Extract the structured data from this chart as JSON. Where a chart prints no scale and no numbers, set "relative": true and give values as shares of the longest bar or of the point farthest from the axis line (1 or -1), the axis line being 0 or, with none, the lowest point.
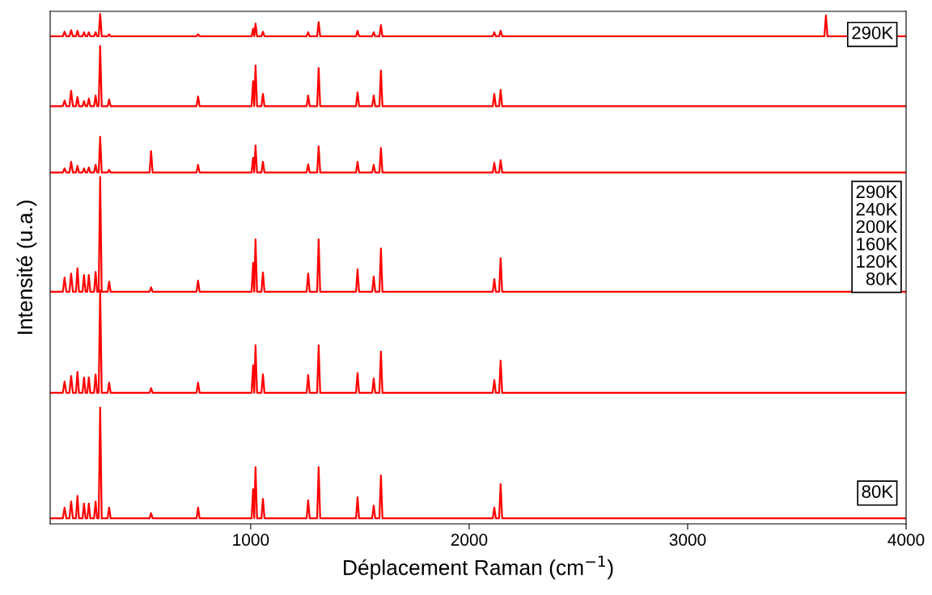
{
  "chart_data": {
    "type": "line",
    "relative": true,
    "xlabel": "Déplacement Raman (cm$^{−1}$)",
    "ylabel": "Intensité (u.a.)",
    "x": [
      82,
      140,
      148,
      156,
      170,
      178,
      186,
      200,
      207,
      214,
      230,
      237,
      244,
      252,
      259,
      266,
      283,
      290,
      297,
      304,
      311,
      318,
      345,
      352,
      359,
      537,
      544,
      551,
      752,
      759,
      766,
      1004,
      1011,
      1016,
      1022,
      1029,
      1049,
      1056,
      1063,
      1256,
      1263,
      1270,
      1304,
      1311,
      1318,
      1482,
      1489,
      1496,
      1556,
      1563,
      1570,
      1589,
      1596,
      1603,
      2108,
      2115,
      2122,
      2137,
      2144,
      2151,
      3626,
      3633,
      3640,
      4000
    ],
    "xlim": [
      82,
      4000
    ],
    "xticks": [
      1000,
      2000,
      3000,
      4000
    ],
    "grid": false,
    "legend": false,
    "marker": "none",
    "line_style": "solid",
    "series": [
      {
        "color": "#ff0000",
        "values": [
          0.956,
          0.956,
          0.965,
          0.956,
          0.956,
          0.968,
          0.956,
          0.956,
          0.967,
          0.956,
          0.956,
          0.964,
          0.956,
          0.956,
          0.964,
          0.956,
          0.956,
          0.964,
          0.956,
          0.956,
          1.0,
          0.956,
          0.956,
          0.96,
          0.956,
          0.956,
          0.956,
          0.956,
          0.956,
          0.96,
          0.956,
          0.956,
          0.971,
          0.956,
          0.981,
          0.956,
          0.956,
          0.965,
          0.956,
          0.956,
          0.964,
          0.956,
          0.956,
          0.984,
          0.956,
          0.956,
          0.967,
          0.956,
          0.956,
          0.964,
          0.956,
          0.956,
          0.978,
          0.956,
          0.956,
          0.964,
          0.956,
          0.956,
          0.967,
          0.956,
          0.956,
          0.997,
          0.956,
          0.956
        ]
      },
      {
        "color": "#ff0000",
        "values": [
          0.819,
          0.819,
          0.83,
          0.819,
          0.819,
          0.849,
          0.819,
          0.819,
          0.837,
          0.819,
          0.819,
          0.829,
          0.819,
          0.819,
          0.834,
          0.819,
          0.819,
          0.84,
          0.819,
          0.819,
          0.937,
          0.819,
          0.819,
          0.832,
          0.819,
          0.819,
          0.819,
          0.819,
          0.819,
          0.838,
          0.819,
          0.819,
          0.868,
          0.819,
          0.899,
          0.819,
          0.819,
          0.843,
          0.819,
          0.819,
          0.84,
          0.819,
          0.819,
          0.894,
          0.819,
          0.819,
          0.846,
          0.819,
          0.819,
          0.84,
          0.819,
          0.819,
          0.889,
          0.819,
          0.819,
          0.843,
          0.819,
          0.819,
          0.851,
          0.819,
          0.819,
          0.819,
          0.819,
          0.819
        ]
      },
      {
        "color": "#ff0000",
        "values": [
          0.689,
          0.689,
          0.697,
          0.689,
          0.689,
          0.71,
          0.689,
          0.689,
          0.702,
          0.689,
          0.689,
          0.697,
          0.689,
          0.689,
          0.699,
          0.689,
          0.689,
          0.704,
          0.689,
          0.689,
          0.759,
          0.689,
          0.689,
          0.694,
          0.689,
          0.689,
          0.731,
          0.689,
          0.689,
          0.704,
          0.689,
          0.689,
          0.718,
          0.689,
          0.742,
          0.689,
          0.689,
          0.71,
          0.689,
          0.689,
          0.705,
          0.689,
          0.689,
          0.74,
          0.689,
          0.689,
          0.71,
          0.689,
          0.689,
          0.704,
          0.689,
          0.689,
          0.737,
          0.689,
          0.689,
          0.708,
          0.689,
          0.689,
          0.713,
          0.689,
          0.689,
          0.689,
          0.689,
          0.689
        ]
      },
      {
        "color": "#ff0000",
        "values": [
          0.455,
          0.455,
          0.483,
          0.455,
          0.455,
          0.491,
          0.455,
          0.455,
          0.501,
          0.455,
          0.455,
          0.488,
          0.455,
          0.455,
          0.488,
          0.455,
          0.455,
          0.494,
          0.455,
          0.455,
          0.68,
          0.455,
          0.455,
          0.475,
          0.455,
          0.455,
          0.464,
          0.455,
          0.455,
          0.477,
          0.455,
          0.455,
          0.512,
          0.455,
          0.558,
          0.455,
          0.455,
          0.493,
          0.455,
          0.455,
          0.491,
          0.455,
          0.455,
          0.558,
          0.455,
          0.455,
          0.499,
          0.455,
          0.455,
          0.485,
          0.455,
          0.455,
          0.54,
          0.455,
          0.455,
          0.48,
          0.455,
          0.455,
          0.521,
          0.455,
          0.455,
          0.455,
          0.455,
          0.455
        ]
      },
      {
        "color": "#ff0000",
        "values": [
          0.257,
          0.257,
          0.279,
          0.257,
          0.257,
          0.29,
          0.257,
          0.257,
          0.298,
          0.257,
          0.257,
          0.287,
          0.257,
          0.257,
          0.287,
          0.257,
          0.257,
          0.293,
          0.257,
          0.257,
          0.458,
          0.257,
          0.257,
          0.277,
          0.257,
          0.257,
          0.266,
          0.257,
          0.257,
          0.277,
          0.257,
          0.257,
          0.311,
          0.257,
          0.35,
          0.257,
          0.257,
          0.293,
          0.257,
          0.257,
          0.292,
          0.257,
          0.257,
          0.35,
          0.257,
          0.257,
          0.296,
          0.257,
          0.257,
          0.285,
          0.257,
          0.257,
          0.338,
          0.257,
          0.257,
          0.282,
          0.257,
          0.257,
          0.32,
          0.257,
          0.257,
          0.257,
          0.257,
          0.257
        ]
      },
      {
        "color": "#ff0000",
        "values": [
          0.011,
          0.011,
          0.032,
          0.011,
          0.011,
          0.044,
          0.011,
          0.011,
          0.055,
          0.011,
          0.011,
          0.04,
          0.011,
          0.011,
          0.04,
          0.011,
          0.011,
          0.044,
          0.011,
          0.011,
          0.228,
          0.011,
          0.011,
          0.032,
          0.011,
          0.011,
          0.021,
          0.011,
          0.011,
          0.032,
          0.011,
          0.011,
          0.068,
          0.011,
          0.111,
          0.011,
          0.011,
          0.049,
          0.011,
          0.011,
          0.046,
          0.011,
          0.011,
          0.111,
          0.011,
          0.011,
          0.052,
          0.011,
          0.011,
          0.036,
          0.011,
          0.011,
          0.095,
          0.011,
          0.011,
          0.032,
          0.011,
          0.011,
          0.078,
          0.011,
          0.011,
          0.011,
          0.011,
          0.011
        ]
      }
    ],
    "annotations": [
      "290K",
      "290K\n240K\n200K\n160K\n120K\n80K",
      "80K"
    ]
  }
}
